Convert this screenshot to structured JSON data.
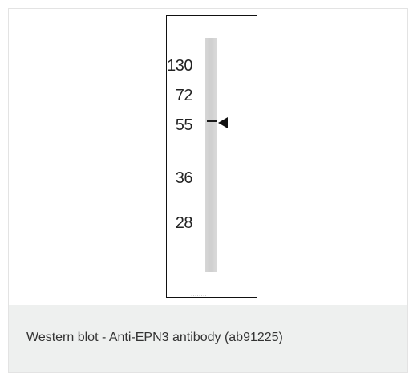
{
  "figure": {
    "markers": [
      "130",
      "72",
      "55",
      "36",
      "28"
    ],
    "lane_label": "········"
  },
  "caption": "Western blot - Anti-EPN3 antibody (ab91225)"
}
